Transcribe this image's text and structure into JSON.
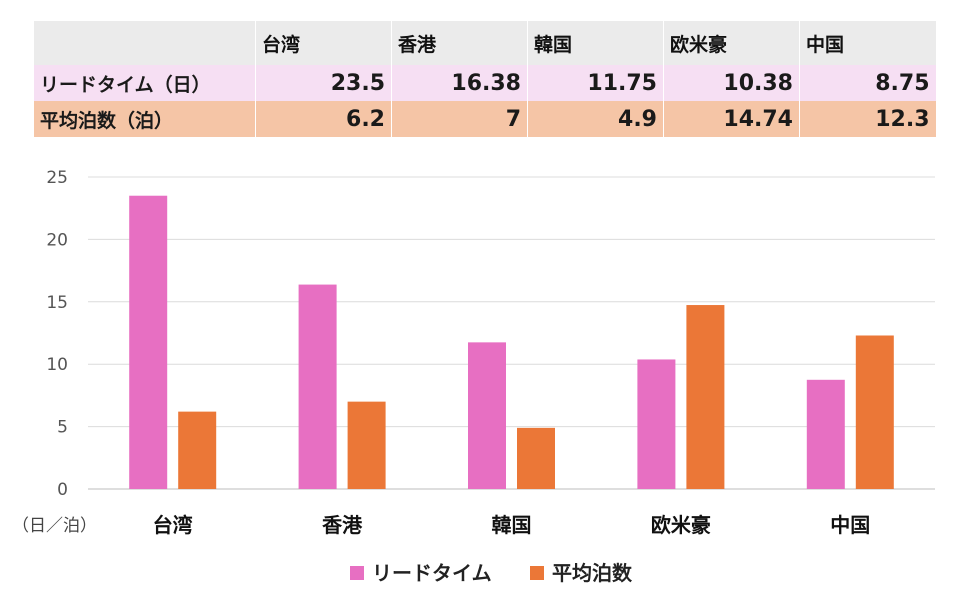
{
  "table": {
    "header": [
      "",
      "台湾",
      "香港",
      "韓国",
      "欧米豪",
      "中国"
    ],
    "rows": [
      {
        "label": "リードタイム（日）",
        "values": [
          "23.5",
          "16.38",
          "11.75",
          "10.38",
          "8.75"
        ]
      },
      {
        "label": "平均泊数（泊）",
        "values": [
          "6.2",
          "7",
          "4.9",
          "14.74",
          "12.3"
        ]
      }
    ]
  },
  "chart_data": {
    "type": "bar",
    "categories": [
      "台湾",
      "香港",
      "韓国",
      "欧米豪",
      "中国"
    ],
    "series": [
      {
        "name": "リードタイム",
        "values": [
          23.5,
          16.38,
          11.75,
          10.38,
          8.75
        ],
        "color": "#e76fc2"
      },
      {
        "name": "平均泊数",
        "values": [
          6.2,
          7,
          4.9,
          14.74,
          12.3
        ],
        "color": "#eb7737"
      }
    ],
    "yticks": [
      0,
      5,
      10,
      15,
      20,
      25
    ],
    "ylim": [
      0,
      25
    ],
    "unit_label": "（日／泊）",
    "grid": true,
    "legend": "bottom-center"
  }
}
